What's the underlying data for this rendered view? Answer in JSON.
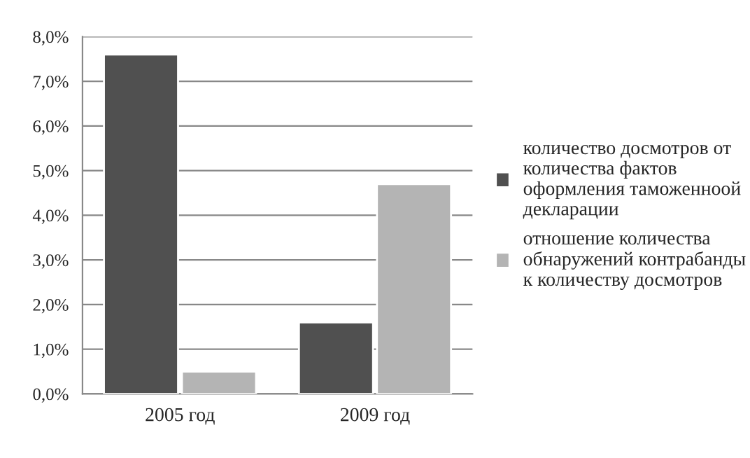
{
  "chart_data": {
    "type": "bar",
    "categories": [
      "2005 год",
      "2009 год"
    ],
    "series": [
      {
        "name": "количество досмотров от количества фактов оформления таможенноой декларации",
        "color": "#505050",
        "values": [
          7.6,
          1.6
        ]
      },
      {
        "name": "отношение количества обнаружений контрабанды к количеству досмотров",
        "color": "#b4b4b4",
        "values": [
          0.5,
          4.7
        ]
      }
    ],
    "ylim": [
      0,
      8
    ],
    "yticks": [
      {
        "value": 0,
        "label": "0,0%"
      },
      {
        "value": 1,
        "label": "1,0%"
      },
      {
        "value": 2,
        "label": "2,0%"
      },
      {
        "value": 3,
        "label": "3,0%"
      },
      {
        "value": 4,
        "label": "4,0%"
      },
      {
        "value": 5,
        "label": "5,0%"
      },
      {
        "value": 6,
        "label": "6,0%"
      },
      {
        "value": 7,
        "label": "7,0%"
      },
      {
        "value": 8,
        "label": "8,0%"
      }
    ],
    "grid": "y",
    "legend": "right"
  }
}
